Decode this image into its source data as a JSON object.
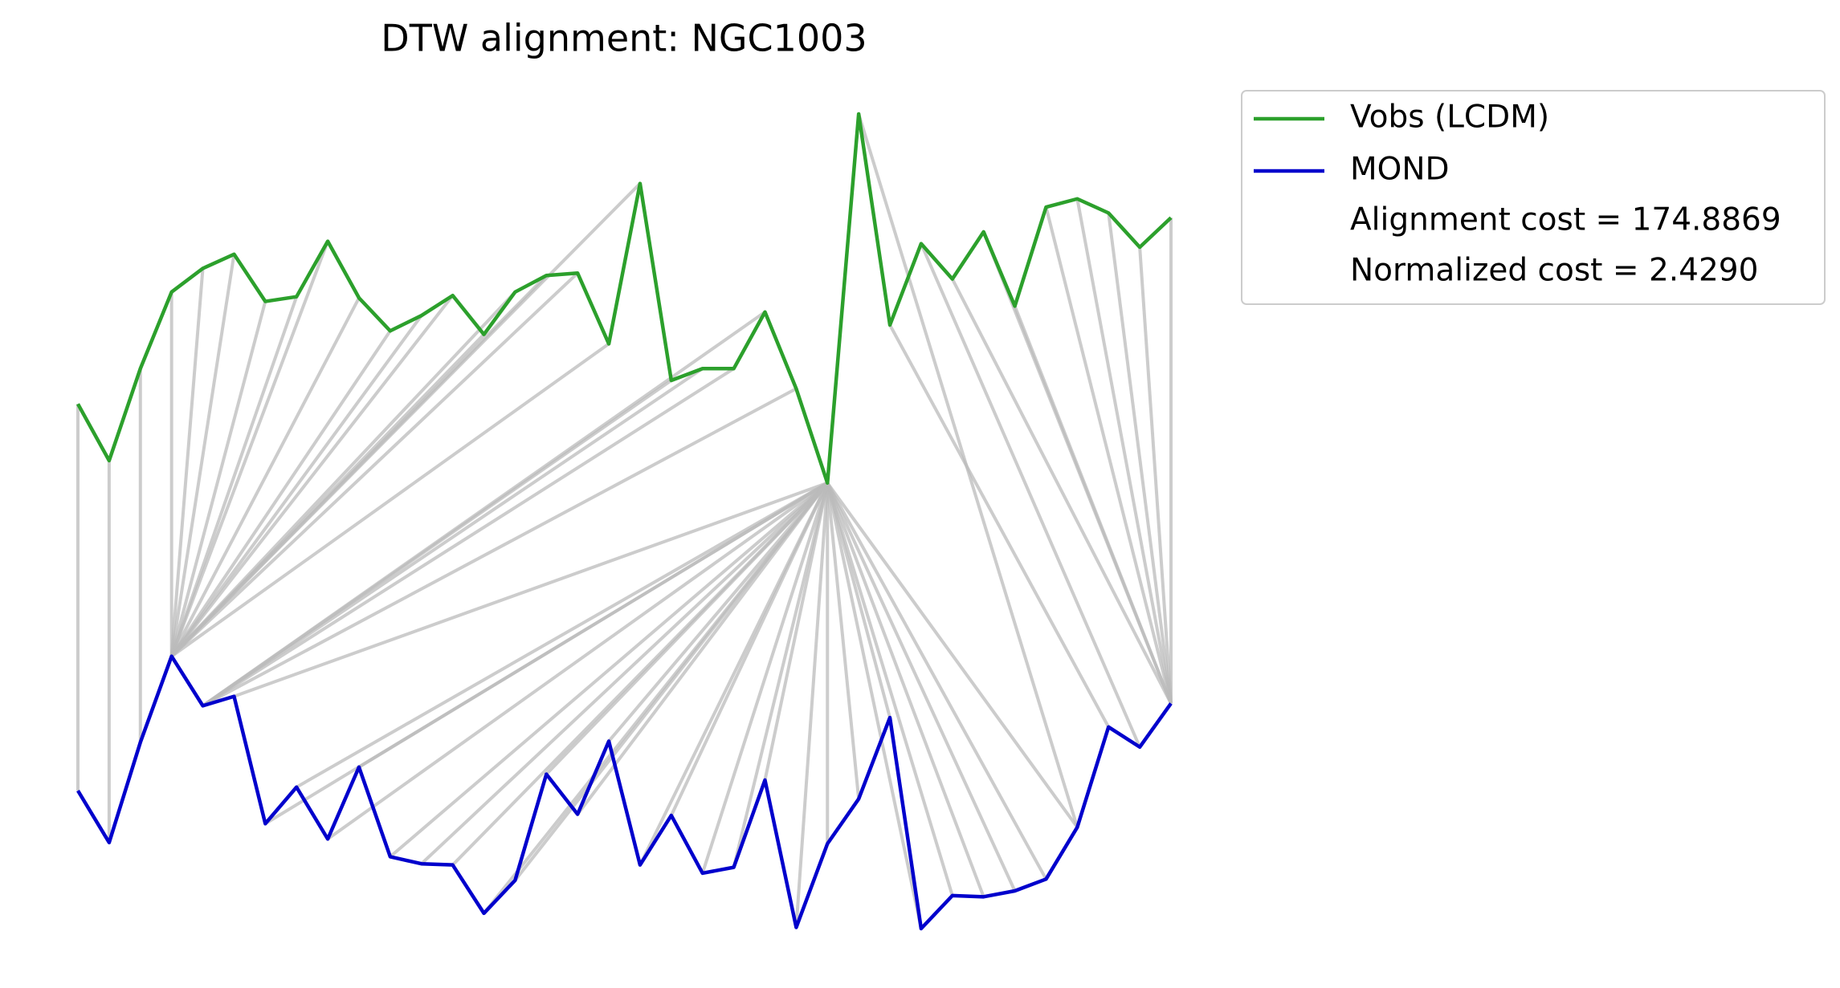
{
  "chart_data": {
    "type": "dtw",
    "title": "DTW alignment: NGC1003",
    "x": [
      0,
      1,
      2,
      3,
      4,
      5,
      6,
      7,
      8,
      9,
      10,
      11,
      12,
      13,
      14,
      15,
      16,
      17,
      18,
      19,
      20,
      21,
      22,
      23,
      24,
      25,
      26,
      27,
      28,
      29,
      30,
      31,
      32,
      33,
      34,
      35
    ],
    "series": [
      {
        "name": "Vobs (LCDM)",
        "color": "#2ca02c",
        "values": [
          457,
          409,
          487,
          552,
          572,
          584,
          544,
          548,
          595,
          547,
          519,
          532,
          549,
          516,
          552,
          566,
          568,
          508,
          644,
          477,
          487,
          487,
          535,
          470,
          390,
          703,
          524,
          593,
          563,
          603,
          540,
          624,
          631,
          619,
          590,
          615
        ]
      },
      {
        "name": "MOND",
        "color": "#0000cc",
        "values": [
          129,
          85,
          170,
          243,
          201,
          209,
          101,
          132,
          88,
          149,
          73,
          67,
          66,
          25,
          53,
          143,
          109,
          171,
          66,
          108,
          59,
          64,
          138,
          13,
          84,
          122,
          191,
          12,
          40,
          39,
          44,
          54,
          98,
          183,
          166,
          203
        ]
      }
    ],
    "alignment": [
      [
        0,
        0
      ],
      [
        1,
        1
      ],
      [
        2,
        2
      ],
      [
        3,
        3
      ],
      [
        4,
        3
      ],
      [
        5,
        3
      ],
      [
        6,
        3
      ],
      [
        7,
        3
      ],
      [
        8,
        3
      ],
      [
        9,
        3
      ],
      [
        10,
        3
      ],
      [
        11,
        3
      ],
      [
        12,
        3
      ],
      [
        13,
        3
      ],
      [
        14,
        3
      ],
      [
        15,
        3
      ],
      [
        16,
        3
      ],
      [
        17,
        3
      ],
      [
        18,
        3
      ],
      [
        19,
        4
      ],
      [
        20,
        4
      ],
      [
        21,
        4
      ],
      [
        22,
        4
      ],
      [
        23,
        4
      ],
      [
        24,
        5
      ],
      [
        24,
        6
      ],
      [
        24,
        7
      ],
      [
        24,
        8
      ],
      [
        24,
        9
      ],
      [
        24,
        10
      ],
      [
        24,
        11
      ],
      [
        24,
        12
      ],
      [
        24,
        13
      ],
      [
        24,
        14
      ],
      [
        24,
        15
      ],
      [
        24,
        16
      ],
      [
        24,
        17
      ],
      [
        24,
        18
      ],
      [
        24,
        19
      ],
      [
        24,
        20
      ],
      [
        24,
        21
      ],
      [
        24,
        22
      ],
      [
        24,
        23
      ],
      [
        24,
        24
      ],
      [
        24,
        25
      ],
      [
        24,
        26
      ],
      [
        24,
        27
      ],
      [
        24,
        28
      ],
      [
        24,
        29
      ],
      [
        24,
        30
      ],
      [
        24,
        31
      ],
      [
        24,
        32
      ],
      [
        25,
        32
      ],
      [
        26,
        33
      ],
      [
        27,
        34
      ],
      [
        28,
        35
      ],
      [
        29,
        35
      ],
      [
        30,
        35
      ],
      [
        31,
        35
      ],
      [
        32,
        35
      ],
      [
        33,
        35
      ],
      [
        34,
        35
      ],
      [
        35,
        35
      ]
    ],
    "alignment_color": "#bbbbbb",
    "annotations": [
      "Alignment cost = 174.8869",
      "Normalized cost = 2.4290"
    ]
  }
}
